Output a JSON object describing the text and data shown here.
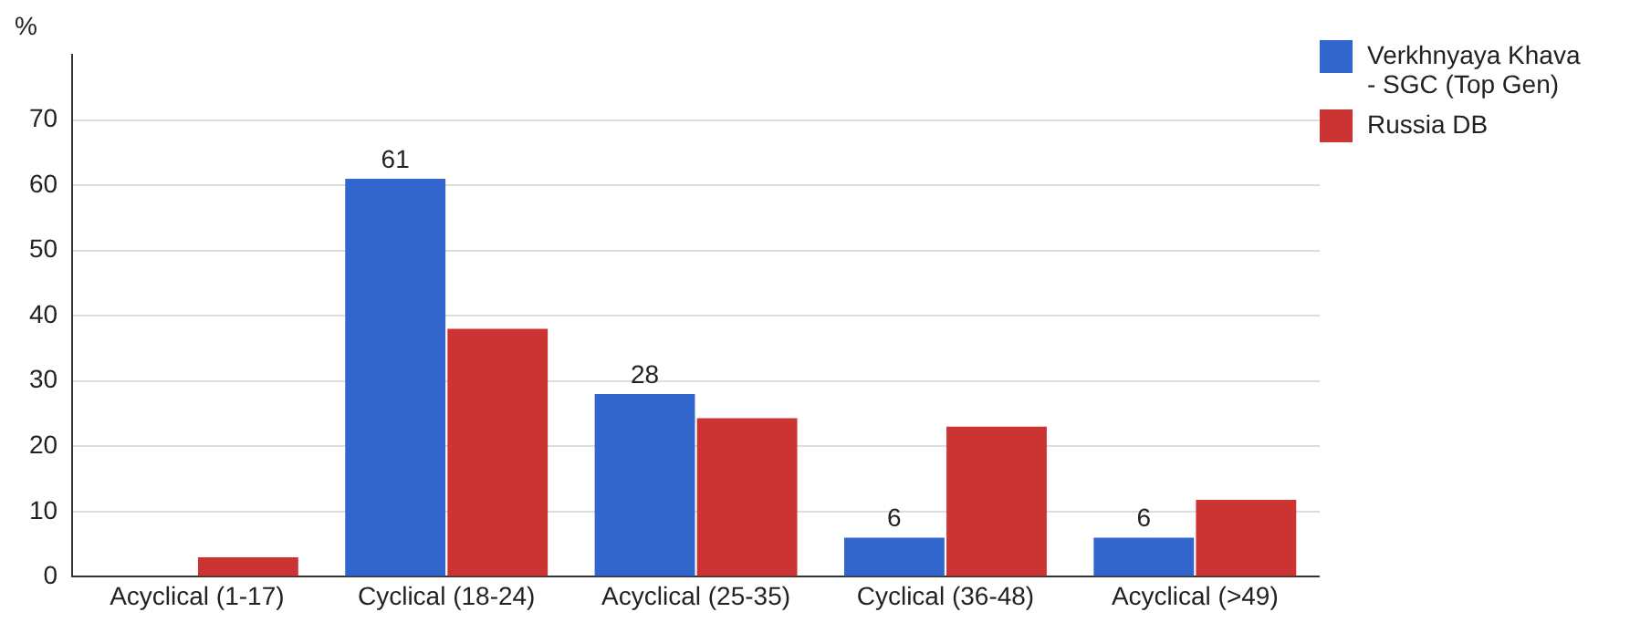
{
  "chart_data": {
    "type": "bar",
    "ylabel": "%",
    "categories": [
      "Acyclical (1-17)",
      "Cyclical (18-24)",
      "Acyclical (25-35)",
      "Cyclical (36-48)",
      "Acyclical (>49)"
    ],
    "series": [
      {
        "name": "Verkhnyaya Khava - SGC (Top Gen)",
        "color": "#3366cc",
        "values": [
          null,
          61,
          28,
          6,
          6
        ],
        "value_labels": [
          null,
          "61",
          "28",
          "6",
          "6"
        ]
      },
      {
        "name": "Russia DB",
        "color": "#cc3333",
        "values": [
          3,
          38,
          24.3,
          23,
          11.8
        ]
      }
    ],
    "ylim": [
      0,
      80
    ],
    "yticks": [
      0,
      10,
      20,
      30,
      40,
      50,
      60,
      70
    ],
    "grid": "y",
    "legend": "top right"
  }
}
